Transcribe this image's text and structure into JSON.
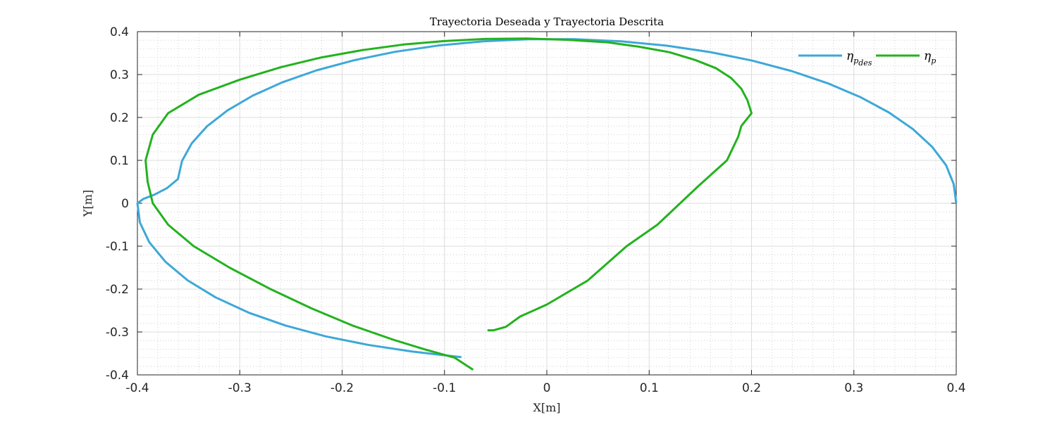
{
  "chart_data": {
    "type": "line",
    "title": "Trayectoria Deseada y Trayectoria Descrita",
    "xlabel": "X[m]",
    "ylabel": "Y[m]",
    "xlim": [
      -0.4,
      0.4
    ],
    "ylim": [
      -0.4,
      0.4
    ],
    "xticks": [
      "-0.4",
      "-0.3",
      "-0.2",
      "-0.1",
      "0",
      "0.1",
      "0.2",
      "0.3",
      "0.4"
    ],
    "yticks": [
      "-0.4",
      "-0.3",
      "-0.2",
      "-0.1",
      "0",
      "0.1",
      "0.2",
      "0.3",
      "0.4"
    ],
    "grid": true,
    "minor_grid": true,
    "legend_position": "top-right",
    "series": [
      {
        "name": "η_{p_des}",
        "legend_main": "η",
        "legend_sub": "p",
        "legend_subsub": "des",
        "color": "#3DA8D8",
        "x": [
          0.4,
          0.3975,
          0.39,
          0.3764,
          0.3577,
          0.3343,
          0.3064,
          0.2745,
          0.2391,
          0.2007,
          0.1598,
          0.1169,
          0.0726,
          0.0275,
          -0.0177,
          -0.0625,
          -0.1063,
          -0.1484,
          -0.1881,
          -0.2249,
          -0.2582,
          -0.2874,
          -0.3121,
          -0.3321,
          -0.3469,
          -0.3564,
          -0.3604,
          -0.3712,
          -0.3835,
          -0.3943,
          -0.4,
          -0.3976,
          -0.3884,
          -0.3727,
          -0.3509,
          -0.3236,
          -0.2915,
          -0.2554,
          -0.2162,
          -0.1748,
          -0.1325,
          -0.1052,
          -0.0835
        ],
        "y": [
          0.0,
          0.0447,
          0.0888,
          0.1317,
          0.1728,
          0.2115,
          0.2473,
          0.2797,
          0.3082,
          0.3325,
          0.3523,
          0.3673,
          0.3774,
          0.3824,
          0.3825,
          0.3775,
          0.3676,
          0.3529,
          0.3335,
          0.3098,
          0.2821,
          0.2508,
          0.2163,
          0.1791,
          0.1397,
          0.0986,
          0.0564,
          0.035,
          0.02,
          0.01,
          0.0,
          -0.0447,
          -0.0907,
          -0.1362,
          -0.1796,
          -0.2194,
          -0.2547,
          -0.2849,
          -0.3101,
          -0.33,
          -0.3452,
          -0.3529,
          -0.3587
        ]
      },
      {
        "name": "η_p",
        "legend_main": "η",
        "legend_sub": "p",
        "legend_subsub": "",
        "color": "#23B21E",
        "x": [
          -0.058,
          -0.052,
          -0.04,
          -0.026,
          0.0,
          0.04,
          0.078,
          0.108,
          0.148,
          0.176,
          0.187,
          0.19,
          0.2,
          0.196,
          0.19,
          0.18,
          0.165,
          0.145,
          0.12,
          0.09,
          0.06,
          0.02,
          -0.02,
          -0.06,
          -0.1,
          -0.14,
          -0.18,
          -0.22,
          -0.26,
          -0.3,
          -0.34,
          -0.37,
          -0.385,
          -0.392,
          -0.39,
          -0.385,
          -0.37,
          -0.345,
          -0.31,
          -0.27,
          -0.23,
          -0.19,
          -0.15,
          -0.12,
          -0.09,
          -0.072
        ],
        "y": [
          -0.296,
          -0.296,
          -0.288,
          -0.264,
          -0.236,
          -0.18,
          -0.1,
          -0.05,
          0.04,
          0.1,
          0.155,
          0.18,
          0.21,
          0.24,
          0.267,
          0.292,
          0.315,
          0.334,
          0.352,
          0.365,
          0.375,
          0.381,
          0.384,
          0.383,
          0.378,
          0.37,
          0.357,
          0.34,
          0.317,
          0.288,
          0.253,
          0.21,
          0.16,
          0.1,
          0.05,
          0.0,
          -0.05,
          -0.1,
          -0.15,
          -0.2,
          -0.245,
          -0.285,
          -0.318,
          -0.34,
          -0.36,
          -0.388
        ]
      }
    ]
  }
}
